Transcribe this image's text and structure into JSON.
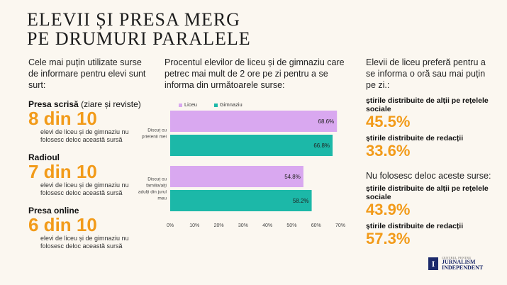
{
  "title_line1": "ELEVII ȘI PRESA MERG",
  "title_line2": "PE DRUMURI PARALELE",
  "left": {
    "intro": "Cele mai puțin utilizate surse de informare pentru elevi sunt surt:",
    "stats": [
      {
        "label": "Presa scrisă",
        "note": " (ziare și reviste)",
        "value": "8 din 10",
        "desc": "elevi de liceu și de gimnaziu nu folosesc deloc această sursă"
      },
      {
        "label": "Radioul",
        "note": "",
        "value": "7 din 10",
        "desc": "elevi de liceu și de gimnaziu nu folosesc deloc această sursă"
      },
      {
        "label": "Presa online",
        "note": "",
        "value": "6 din 10",
        "desc": "elevi de liceu și de gimnaziu nu folosesc deloc această sursă"
      }
    ]
  },
  "chart_data": {
    "type": "bar",
    "orientation": "horizontal",
    "title": "Procentul elevilor de liceu și de gimnaziu care petrec mai mult de 2 ore pe zi pentru a se informa din următoarele surse:",
    "categories": [
      [
        "Discuț cu",
        "prietenii mei"
      ],
      [
        "Discuț cu",
        "familia/alți",
        "adulți din jurul",
        "meu"
      ]
    ],
    "series": [
      {
        "name": "Liceu",
        "color": "#d9a8f0",
        "values": [
          68.6,
          54.8
        ],
        "labels": [
          "68.6%",
          "54.8%"
        ]
      },
      {
        "name": "Gimnaziu",
        "color": "#1cb8a8",
        "values": [
          66.8,
          58.2
        ],
        "labels": [
          "66.8%",
          "58.2%"
        ]
      }
    ],
    "xlim": [
      0,
      70
    ],
    "xticks": [
      "0%",
      "10%",
      "20%",
      "30%",
      "40%",
      "50%",
      "60%",
      "70%"
    ],
    "legend_position": "top"
  },
  "right": {
    "intro1": "Elevii de liceu preferă pentru a se informa o oră sau mai puțin pe zi.:",
    "group1": [
      {
        "label": "știrile distribuite de alții pe rețelele sociale",
        "value": "45.5%"
      },
      {
        "label": "știrile distribuite de redacții",
        "value": "33.6%"
      }
    ],
    "intro2": "Nu folosesc deloc aceste surse:",
    "group2": [
      {
        "label": "știrile distribuite de alții pe rețelele sociale",
        "value": "43.9%"
      },
      {
        "label": "știrile distribuite de redacții",
        "value": "57.3%"
      }
    ]
  },
  "logo": {
    "mark": "I",
    "small": "CENTRUL PENTRU",
    "line1": "JURNALISM",
    "line2": "INDEPENDENT"
  }
}
